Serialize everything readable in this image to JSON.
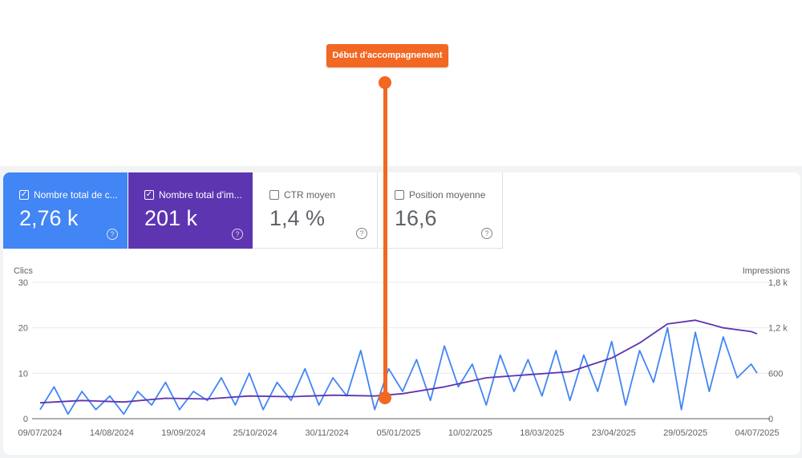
{
  "annotation": {
    "label": "Début d'accompagnement"
  },
  "metrics": [
    {
      "label": "Nombre total de c...",
      "value": "2,76 k",
      "checked": true,
      "color": "#4285f4"
    },
    {
      "label": "Nombre total d'im...",
      "value": "201 k",
      "checked": true,
      "color": "#5e35b1"
    },
    {
      "label": "CTR moyen",
      "value": "1,4 %",
      "checked": false
    },
    {
      "label": "Position moyenne",
      "value": "16,6",
      "checked": false
    }
  ],
  "chart_data": {
    "type": "line",
    "y_left": {
      "label": "Clics",
      "ticks": [
        "0",
        "10",
        "20",
        "30"
      ],
      "range": [
        0,
        30
      ]
    },
    "y_right": {
      "label": "Impressions",
      "ticks": [
        "0",
        "600",
        "1,2 k",
        "1,8 k"
      ],
      "range": [
        0,
        1800
      ]
    },
    "x_tick_labels": [
      "09/07/2024",
      "14/08/2024",
      "19/09/2024",
      "25/10/2024",
      "30/11/2024",
      "05/01/2025",
      "10/02/2025",
      "18/03/2025",
      "23/04/2025",
      "29/05/2025",
      "04/07/2025"
    ],
    "x_range": [
      "2024-07-09",
      "2025-07-04"
    ],
    "grid": true,
    "series": [
      {
        "axis": "left",
        "color": "#4285f4",
        "x": [
          "2024-07-09",
          "2024-07-16",
          "2024-07-23",
          "2024-07-30",
          "2024-08-06",
          "2024-08-13",
          "2024-08-20",
          "2024-08-27",
          "2024-09-03",
          "2024-09-10",
          "2024-09-17",
          "2024-09-24",
          "2024-10-01",
          "2024-10-08",
          "2024-10-15",
          "2024-10-22",
          "2024-10-29",
          "2024-11-05",
          "2024-11-12",
          "2024-11-19",
          "2024-11-26",
          "2024-12-03",
          "2024-12-10",
          "2024-12-17",
          "2024-12-24",
          "2024-12-31",
          "2025-01-07",
          "2025-01-14",
          "2025-01-21",
          "2025-01-28",
          "2025-02-04",
          "2025-02-11",
          "2025-02-18",
          "2025-02-25",
          "2025-03-04",
          "2025-03-11",
          "2025-03-18",
          "2025-03-25",
          "2025-04-01",
          "2025-04-08",
          "2025-04-15",
          "2025-04-22",
          "2025-04-29",
          "2025-05-06",
          "2025-05-13",
          "2025-05-20",
          "2025-05-27",
          "2025-06-03",
          "2025-06-10",
          "2025-06-17",
          "2025-06-24",
          "2025-07-01",
          "2025-07-04"
        ],
        "y": [
          2,
          7,
          1,
          6,
          2,
          5,
          1,
          6,
          3,
          8,
          2,
          6,
          4,
          9,
          3,
          10,
          2,
          8,
          4,
          11,
          3,
          9,
          5,
          15,
          2,
          11,
          6,
          13,
          4,
          16,
          7,
          12,
          3,
          14,
          6,
          13,
          5,
          15,
          4,
          14,
          6,
          17,
          3,
          15,
          8,
          20,
          2,
          19,
          6,
          18,
          9,
          12,
          10
        ]
      },
      {
        "axis": "right",
        "color": "#5e35b1",
        "x": [
          "2024-07-09",
          "2024-07-30",
          "2024-08-20",
          "2024-09-10",
          "2024-10-01",
          "2024-10-22",
          "2024-11-12",
          "2024-12-03",
          "2024-12-24",
          "2025-01-07",
          "2025-01-28",
          "2025-02-18",
          "2025-03-11",
          "2025-04-01",
          "2025-04-22",
          "2025-05-06",
          "2025-05-20",
          "2025-06-03",
          "2025-06-17",
          "2025-07-01",
          "2025-07-04"
        ],
        "y": [
          210,
          240,
          220,
          270,
          260,
          300,
          290,
          310,
          300,
          330,
          420,
          540,
          580,
          620,
          800,
          1000,
          1250,
          1300,
          1200,
          1150,
          1120
        ]
      }
    ]
  }
}
